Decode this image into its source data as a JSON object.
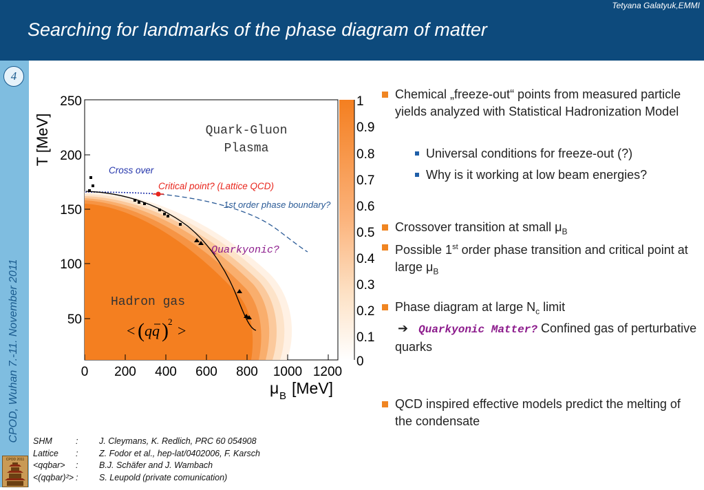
{
  "header": {
    "author": "Tetyana Galatyuk,EMMI",
    "title": "Searching for landmarks of the phase diagram of matter"
  },
  "sidebar": {
    "slide_number": "4",
    "conference": "CPOD, Wuhan 7.-11. November 2011",
    "logo_label": "CPOD 2011"
  },
  "plot": {
    "y_axis_label": "T [MeV]",
    "x_axis_label_mu": "μ",
    "x_axis_label_sub": "B",
    "x_axis_label_unit": "[MeV]",
    "x_ticks": [
      "0",
      "200",
      "400",
      "600",
      "800",
      "1000",
      "1200"
    ],
    "y_ticks": [
      "50",
      "100",
      "150",
      "200",
      "250"
    ],
    "colorbar_ticks": [
      "0",
      "0.1",
      "0.2",
      "0.3",
      "0.4",
      "0.5",
      "0.6",
      "0.7",
      "0.8",
      "0.9",
      "1"
    ],
    "qgp_label_line1": "Quark-Gluon",
    "qgp_label_line2": "Plasma",
    "crossover_label": "Cross over",
    "critical_point_label": "Critical point? (Lattice QCD)",
    "first_order_label": "1st order phase boundary?",
    "quarkyonic_label": "Quarkyonic?",
    "hadron_gas_label": "Hadron gas",
    "condensate_left": "<",
    "condensate_qq": "qq",
    "condensate_exp": "2",
    "condensate_right": ">",
    "colors": {
      "hadron_fill": "#f47f20",
      "first_order_line": "#2a5a96",
      "critical_point": "#e8251c",
      "crossover_text": "#2233aa",
      "quarkyonic_text": "#8c1b8c"
    }
  },
  "bullets": {
    "b1": "Chemical „freeze-out“ points from measured particle yields analyzed with Statistical Hadronization Model",
    "b1_sub1": "Universal conditions for freeze-out (?)",
    "b1_sub2": "Why is it working at low beam energies?",
    "b2_text": "Crossover transition at small ",
    "b2_mu": "μ",
    "b2_sub": "B",
    "b3_pre": "Possible 1",
    "b3_sup": "st",
    "b3_mid": " order phase transition and critical point at large ",
    "b3_mu": "μ",
    "b3_sub": "B",
    "b4_pre": "Phase diagram at large N",
    "b4_sub": "c",
    "b4_post": " limit",
    "b4_arrow": "➔",
    "b4_quarkyonic": "Quarkyonic Matter?",
    "b4_rest": " Confined gas of  perturbative quarks",
    "b5": "QCD inspired effective models predict the melting of the condensate"
  },
  "references": [
    {
      "key": "SHM",
      "colon": ":",
      "text": "J. Cleymans, K. Redlich, PRC 60 054908"
    },
    {
      "key": "Lattice",
      "colon": ":",
      "text": "Z. Fodor et al., hep-lat/0402006, F. Karsch"
    },
    {
      "key": "<qqbar>",
      "colon": ":",
      "text": "B.J. Schäfer and J. Wambach"
    },
    {
      "key": "<(qqbar)²>",
      "colon": ":",
      "text": "S. Leupold (private comunication)"
    }
  ]
}
